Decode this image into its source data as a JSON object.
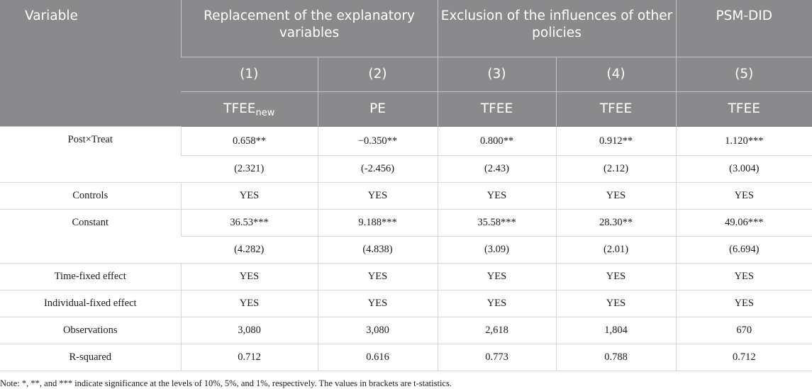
{
  "header": {
    "variable": "Variable",
    "groups": [
      "Replacement of the explanatory variables",
      "Exclusion of the influences of other policies",
      "PSM-DID"
    ],
    "model_numbers": [
      "(1)",
      "(2)",
      "(3)",
      "(4)",
      "(5)"
    ],
    "dependent_vars": [
      {
        "base": "TFEE",
        "sub": "new"
      },
      {
        "base": "PE",
        "sub": ""
      },
      {
        "base": "TFEE",
        "sub": ""
      },
      {
        "base": "TFEE",
        "sub": ""
      },
      {
        "base": "TFEE",
        "sub": ""
      }
    ]
  },
  "rows": [
    {
      "label": "Post×Treat",
      "values": [
        "0.658**",
        "−0.350**",
        "0.800**",
        "0.912**",
        "1.120***"
      ],
      "sub_values": [
        "(2.321)",
        "(-2.456)",
        "(2.43)",
        "(2.12)",
        "(3.004)"
      ]
    },
    {
      "label": "Controls",
      "values": [
        "YES",
        "YES",
        "YES",
        "YES",
        "YES"
      ]
    },
    {
      "label": "Constant",
      "values": [
        "36.53***",
        "9.188***",
        "35.58***",
        "28.30**",
        "49.06***"
      ],
      "sub_values": [
        "(4.282)",
        "(4.838)",
        "(3.09)",
        "(2.01)",
        "(6.694)"
      ]
    },
    {
      "label": "Time-fixed effect",
      "values": [
        "YES",
        "YES",
        "YES",
        "YES",
        "YES"
      ]
    },
    {
      "label": "Individual-fixed effect",
      "values": [
        "YES",
        "YES",
        "YES",
        "YES",
        "YES"
      ]
    },
    {
      "label": "Observations",
      "values": [
        "3,080",
        "3,080",
        "2,618",
        "1,804",
        "670"
      ]
    },
    {
      "label": "R-squared",
      "values": [
        "0.712",
        "0.616",
        "0.773",
        "0.788",
        "0.712"
      ]
    }
  ],
  "note": "Note: *, **, and *** indicate significance at the levels of 10%, 5%, and 1%, respectively. The values in brackets are t-statistics."
}
